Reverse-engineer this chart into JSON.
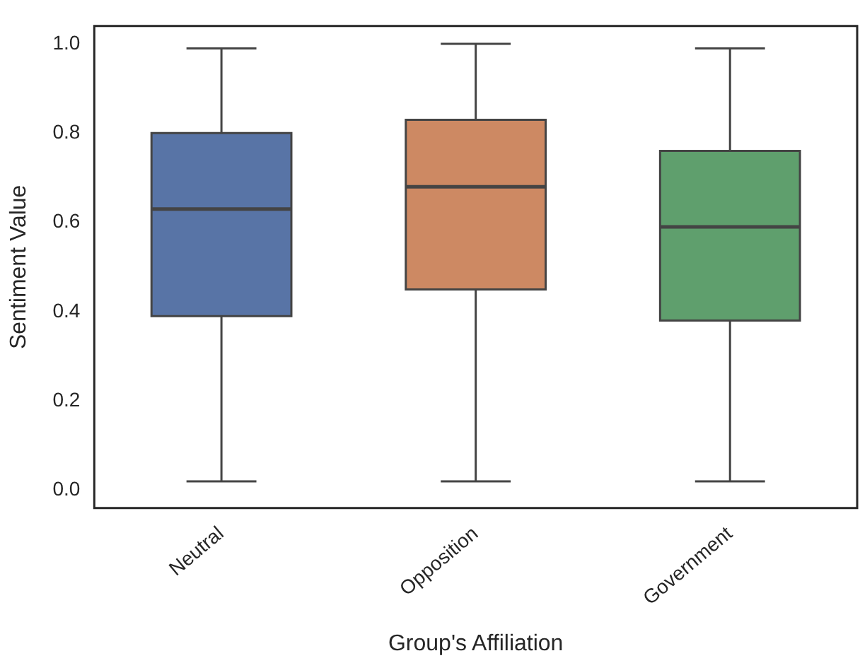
{
  "chart_data": {
    "type": "box",
    "xlabel": "Group's Affiliation",
    "ylabel": "Sentiment Value",
    "categories": [
      "Neutral",
      "Opposition",
      "Government"
    ],
    "colors": [
      "#5874a6",
      "#cd8963",
      "#5f9f6d"
    ],
    "boxes": [
      {
        "low": 0.02,
        "q1": 0.39,
        "median": 0.63,
        "q3": 0.8,
        "high": 0.99
      },
      {
        "low": 0.02,
        "q1": 0.45,
        "median": 0.68,
        "q3": 0.83,
        "high": 1.0
      },
      {
        "low": 0.02,
        "q1": 0.38,
        "median": 0.59,
        "q3": 0.76,
        "high": 0.99
      }
    ],
    "ylim": [
      -0.04,
      1.04
    ],
    "yticks": [
      {
        "value": 0,
        "label": "0.0"
      },
      {
        "value": 0.2,
        "label": "0.2"
      },
      {
        "value": 0.4,
        "label": "0.4"
      },
      {
        "value": 0.6,
        "label": "0.6"
      },
      {
        "value": 0.8,
        "label": "0.8"
      },
      {
        "value": 1,
        "label": "1.0"
      }
    ],
    "grid": false,
    "legend": false
  }
}
